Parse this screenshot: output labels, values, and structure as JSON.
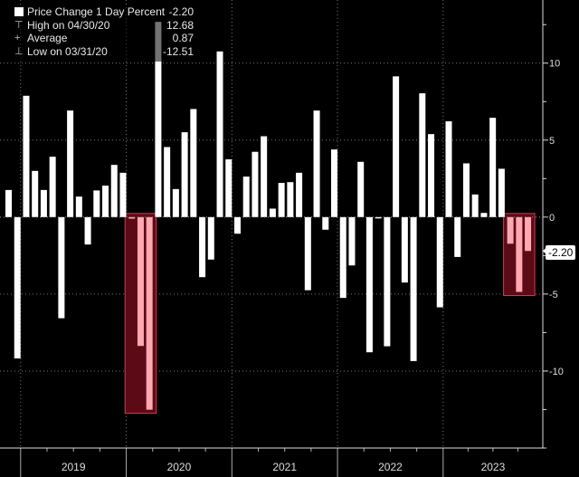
{
  "chart_data": {
    "type": "bar",
    "categories": [
      "2018-11",
      "2018-12",
      "2019-01",
      "2019-02",
      "2019-03",
      "2019-04",
      "2019-05",
      "2019-06",
      "2019-07",
      "2019-08",
      "2019-09",
      "2019-10",
      "2019-11",
      "2019-12",
      "2020-01",
      "2020-02",
      "2020-03",
      "2020-04",
      "2020-05",
      "2020-06",
      "2020-07",
      "2020-08",
      "2020-09",
      "2020-10",
      "2020-11",
      "2020-12",
      "2021-01",
      "2021-02",
      "2021-03",
      "2021-04",
      "2021-05",
      "2021-06",
      "2021-07",
      "2021-08",
      "2021-09",
      "2021-10",
      "2021-11",
      "2021-12",
      "2022-01",
      "2022-02",
      "2022-03",
      "2022-04",
      "2022-05",
      "2022-06",
      "2022-07",
      "2022-08",
      "2022-09",
      "2022-10",
      "2022-11",
      "2022-12",
      "2023-01",
      "2023-02",
      "2023-03",
      "2023-04",
      "2023-05",
      "2023-06",
      "2023-07",
      "2023-08",
      "2023-09",
      "2023-10"
    ],
    "values": [
      1.76,
      -9.18,
      7.88,
      3.0,
      1.76,
      3.92,
      -6.57,
      6.92,
      1.33,
      -1.78,
      1.73,
      2.04,
      3.39,
      2.88,
      -0.1,
      -8.37,
      -12.51,
      12.68,
      4.55,
      1.82,
      5.51,
      7.02,
      -3.9,
      -2.76,
      10.76,
      3.75,
      -1.08,
      2.63,
      4.24,
      5.25,
      0.55,
      2.22,
      2.27,
      2.88,
      -4.75,
      6.92,
      -0.82,
      4.39,
      -5.25,
      -3.14,
      3.59,
      -8.78,
      -0.05,
      -8.39,
      9.14,
      -4.25,
      -9.35,
      8.04,
      5.39,
      -5.86,
      6.22,
      -2.59,
      3.49,
      1.47,
      0.27,
      6.45,
      3.14,
      -1.73,
      -4.86,
      -2.2
    ],
    "highlighted_ranges": [
      [
        "2020-01",
        "2020-03"
      ],
      [
        "2023-08",
        "2023-10"
      ]
    ],
    "ylim": [
      -15,
      14.1
    ],
    "y_ticks": [
      10,
      5,
      0,
      -5,
      -10
    ],
    "x_tick_labels": [
      "2019",
      "2020",
      "2021",
      "2022",
      "2023"
    ],
    "y_axis_side": "right",
    "grid": true,
    "legend_placement": "top-left",
    "last_value_label": "-2.20",
    "colors": {
      "background": "#000000",
      "bar": "#ffffff",
      "highlight_bar": "#ffa8b2",
      "highlight_box": "#5c0a16",
      "highlight_border": "#c8404e"
    }
  },
  "legend": {
    "series": {
      "label": "Price Change 1 Day Percent",
      "value": "-2.20"
    },
    "high": {
      "label": "High on 04/30/20",
      "value": "12.68",
      "icon": "high-marker-icon"
    },
    "average": {
      "label": "Average",
      "value": "0.87",
      "icon": "average-marker-icon"
    },
    "low": {
      "label": "Low on 03/31/20",
      "value": "-12.51",
      "icon": "low-marker-icon"
    }
  }
}
